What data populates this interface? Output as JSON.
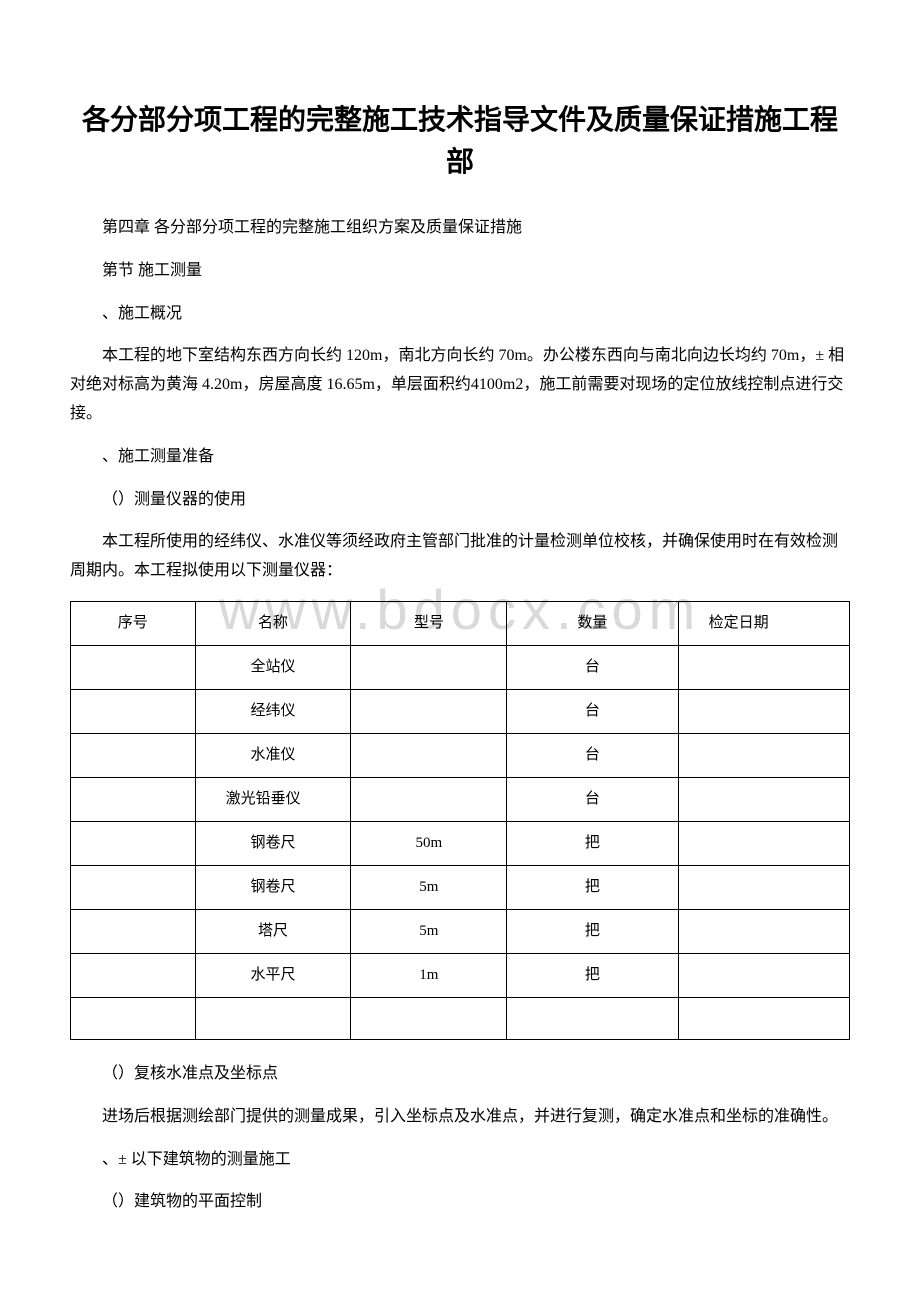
{
  "title": "各分部分项工程的完整施工技术指导文件及质量保证措施工程部",
  "p1": "第四章 各分部分项工程的完整施工组织方案及质量保证措施",
  "p2": "第节 施工测量",
  "p3": "、施工概况",
  "p4": "本工程的地下室结构东西方向长约 120m，南北方向长约 70m。办公楼东西向与南北向边长均约 70m，± 相对绝对标高为黄海 4.20m，房屋高度 16.65m，单层面积约4100m2，施工前需要对现场的定位放线控制点进行交接。",
  "p5": "、施工测量准备",
  "p6": "（）测量仪器的使用",
  "p7": "本工程所使用的经纬仪、水准仪等须经政府主管部门批准的计量检测单位校核，并确保使用时在有效检测周期内。本工程拟使用以下测量仪器：",
  "table": {
    "headers": [
      "序号",
      "名称",
      "型号",
      "数量",
      "检定日期"
    ],
    "rows": [
      [
        "",
        "全站仪",
        "",
        "台",
        ""
      ],
      [
        "",
        "经纬仪",
        "",
        "台",
        ""
      ],
      [
        "",
        "水准仪",
        "",
        "台",
        ""
      ],
      [
        "",
        "激光铅垂仪",
        "",
        "台",
        ""
      ],
      [
        "",
        "钢卷尺",
        "50m",
        "把",
        ""
      ],
      [
        "",
        "钢卷尺",
        "5m",
        "把",
        ""
      ],
      [
        "",
        "塔尺",
        "5m",
        "把",
        ""
      ],
      [
        "",
        "水平尺",
        "1m",
        "把",
        ""
      ],
      [
        "",
        "",
        "",
        "",
        ""
      ]
    ]
  },
  "p8": "（）复核水准点及坐标点",
  "p9": "进场后根据测绘部门提供的测量成果，引入坐标点及水准点，并进行复测，确定水准点和坐标的准确性。",
  "p10": "、± 以下建筑物的测量施工",
  "p11": "（）建筑物的平面控制",
  "watermark": "www.bdocx.com",
  "styles": {
    "page_bg": "#ffffff",
    "text_color": "#000000",
    "border_color": "#000000",
    "watermark_color": "#d9d9d9",
    "title_fontsize": 28,
    "body_fontsize": 16
  }
}
